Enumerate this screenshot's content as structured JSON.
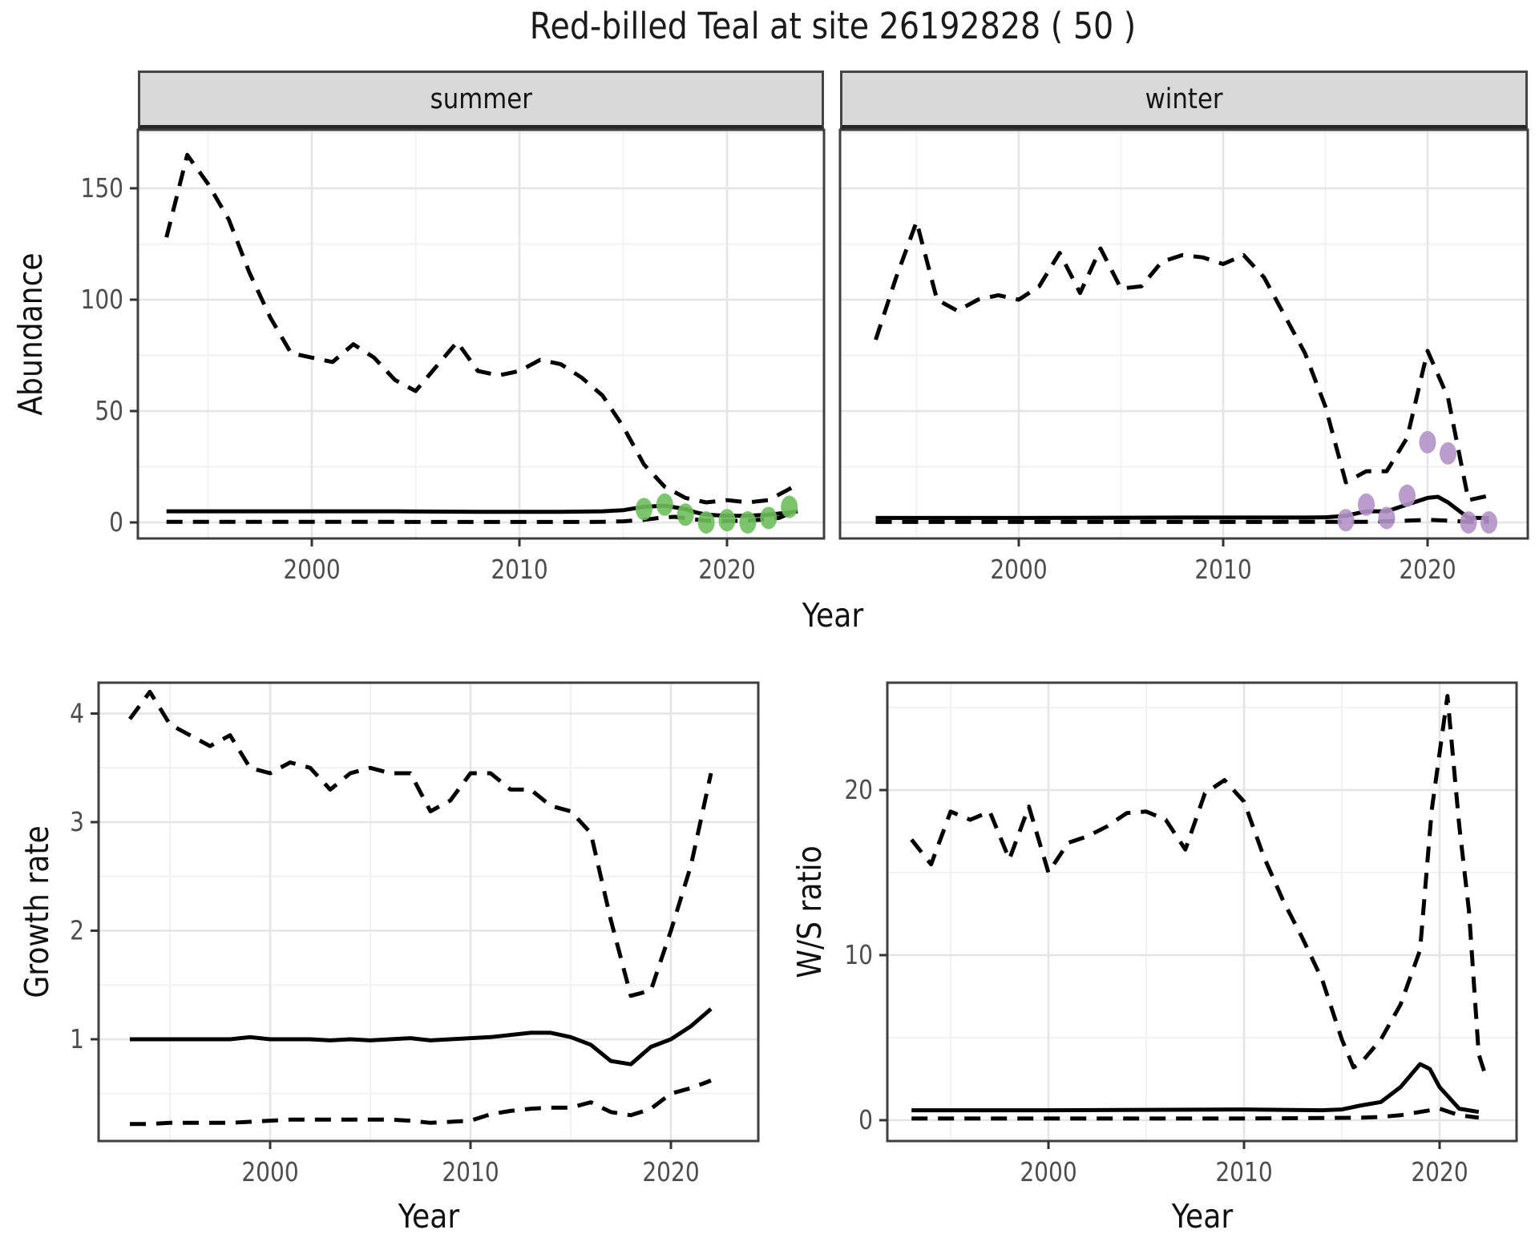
{
  "title": "Red-billed Teal at site 26192828 ( 50 )",
  "colors": {
    "summer_points": "#6fbf5c",
    "winter_points": "#b392c6",
    "line": "#000000",
    "grid_major": "#e5e5e5",
    "grid_minor": "#f2f2f2",
    "panel_border": "#3f3f3f",
    "tick_text": "#4d4d4d",
    "strip_bg": "#d9d9d9"
  },
  "chart_data": [
    {
      "id": "abundance-summer",
      "type": "line",
      "facet": "summer",
      "xlabel": "Year",
      "ylabel": "Abundance",
      "xlim": [
        1991.6,
        2024.7
      ],
      "ylim": [
        -7,
        176
      ],
      "xticks": [
        2000,
        2010,
        2020
      ],
      "yticks": [
        0,
        50,
        100,
        150
      ],
      "series": [
        {
          "name": "upper-95ci",
          "style": "dashed",
          "x": [
            1993,
            1994,
            1995,
            1996,
            1997,
            1998,
            1999,
            2000,
            2001,
            2002,
            2003,
            2004,
            2005,
            2006,
            2007,
            2008,
            2009,
            2010,
            2011,
            2012,
            2013,
            2014,
            2015,
            2016,
            2017,
            2018,
            2019,
            2020,
            2021,
            2022,
            2023,
            2023.4
          ],
          "y": [
            128,
            165,
            152,
            136,
            112,
            92,
            76,
            74,
            72,
            80,
            74,
            64,
            59,
            70,
            81,
            68,
            66,
            68,
            73,
            71,
            65,
            57,
            43,
            26,
            16,
            11,
            9,
            10,
            9,
            10,
            15,
            17
          ]
        },
        {
          "name": "median",
          "style": "solid",
          "x": [
            1993,
            1996,
            2000,
            2004,
            2008,
            2012,
            2014,
            2015,
            2016,
            2017,
            2018,
            2018.5,
            2019,
            2020,
            2021,
            2022,
            2023,
            2023.4
          ],
          "y": [
            5,
            5,
            5,
            5,
            4.8,
            4.8,
            5,
            5.5,
            7,
            7.5,
            6,
            4.5,
            3.5,
            3,
            3,
            3.5,
            4.5,
            5
          ]
        },
        {
          "name": "lower-95ci",
          "style": "dashed",
          "x": [
            1993,
            2000,
            2008,
            2013,
            2014,
            2015,
            2016,
            2017,
            2017.5,
            2018,
            2019,
            2020,
            2021,
            2022,
            2022.5,
            2023,
            2023.4
          ],
          "y": [
            0.3,
            0.3,
            0.2,
            0.2,
            0.3,
            0.5,
            1.2,
            2.3,
            2.5,
            1.8,
            0.8,
            0.6,
            0.8,
            1.5,
            2,
            4,
            6
          ]
        },
        {
          "name": "observed-counts",
          "style": "points",
          "color": "#6fbf5c",
          "x": [
            2016,
            2017,
            2018,
            2019,
            2020,
            2021,
            2022,
            2023
          ],
          "y": [
            6,
            8,
            3.5,
            0,
            1,
            0,
            2,
            7
          ]
        }
      ]
    },
    {
      "id": "abundance-winter",
      "type": "line",
      "facet": "winter",
      "xlabel": "Year",
      "ylabel": "Abundance",
      "xlim": [
        1991.3,
        2024.9
      ],
      "ylim": [
        -7,
        176
      ],
      "xticks": [
        2000,
        2010,
        2020
      ],
      "yticks": [
        0,
        50,
        100,
        150
      ],
      "series": [
        {
          "name": "upper-95ci",
          "style": "dashed",
          "x": [
            1993,
            1994,
            1995,
            1996,
            1997,
            1998,
            1999,
            2000,
            2001,
            2002,
            2003,
            2004,
            2005,
            2006,
            2007,
            2008,
            2009,
            2010,
            2011,
            2012,
            2013,
            2014,
            2015,
            2016,
            2017,
            2018,
            2019,
            2020,
            2021,
            2022,
            2023
          ],
          "y": [
            82,
            110,
            135,
            100,
            95,
            100,
            102,
            100,
            106,
            121,
            103,
            123,
            105,
            106,
            117,
            120,
            119,
            116,
            120,
            110,
            93,
            76,
            52,
            18,
            23,
            23,
            38,
            77,
            56,
            10,
            12
          ]
        },
        {
          "name": "median",
          "style": "solid",
          "x": [
            1993,
            2000,
            2008,
            2014,
            2015,
            2016,
            2017,
            2018,
            2019,
            2020,
            2020.5,
            2021,
            2022,
            2023
          ],
          "y": [
            2,
            2,
            2.2,
            2.2,
            2.3,
            3,
            5,
            5,
            8,
            11,
            11.5,
            9,
            2,
            2
          ]
        },
        {
          "name": "lower-95ci",
          "style": "dashed",
          "x": [
            1993,
            2000,
            2010,
            2017,
            2018,
            2019,
            2020,
            2021,
            2022,
            2023
          ],
          "y": [
            0.2,
            0.2,
            0.2,
            0.3,
            0.5,
            0.8,
            1.2,
            0.8,
            0.3,
            0.3
          ]
        },
        {
          "name": "observed-counts",
          "style": "points",
          "color": "#b392c6",
          "x": [
            2016,
            2017,
            2018,
            2019,
            2020,
            2021,
            2022,
            2023
          ],
          "y": [
            1,
            8,
            2,
            12,
            36,
            31,
            0,
            0
          ]
        }
      ]
    },
    {
      "id": "growth-rate",
      "type": "line",
      "facet": "",
      "xlabel": "Year",
      "ylabel": "Growth rate",
      "xlim": [
        1991.4,
        2024.4
      ],
      "ylim": [
        0.06,
        4.28
      ],
      "xticks": [
        2000,
        2010,
        2020
      ],
      "yticks": [
        1,
        2,
        3,
        4
      ],
      "series": [
        {
          "name": "upper-95ci",
          "style": "dashed",
          "x": [
            1993,
            1994,
            1995,
            1996,
            1997,
            1998,
            1999,
            2000,
            2001,
            2002,
            2003,
            2004,
            2005,
            2006,
            2007,
            2008,
            2009,
            2010,
            2011,
            2012,
            2013,
            2014,
            2015,
            2016,
            2017,
            2018,
            2019,
            2020,
            2021,
            2022
          ],
          "y": [
            3.95,
            4.2,
            3.9,
            3.8,
            3.7,
            3.8,
            3.5,
            3.45,
            3.55,
            3.5,
            3.3,
            3.45,
            3.5,
            3.45,
            3.45,
            3.1,
            3.2,
            3.45,
            3.45,
            3.3,
            3.3,
            3.15,
            3.1,
            2.9,
            2.1,
            1.4,
            1.45,
            2.0,
            2.6,
            3.45
          ]
        },
        {
          "name": "median",
          "style": "solid",
          "x": [
            1993,
            1994,
            1995,
            1996,
            1997,
            1998,
            1999,
            2000,
            2001,
            2002,
            2003,
            2004,
            2005,
            2006,
            2007,
            2008,
            2009,
            2010,
            2011,
            2012,
            2013,
            2014,
            2015,
            2016,
            2017,
            2018,
            2019,
            2020,
            2021,
            2022
          ],
          "y": [
            1,
            1,
            1,
            1,
            1,
            1,
            1.02,
            1,
            1,
            1,
            0.99,
            1,
            0.99,
            1,
            1.01,
            0.99,
            1,
            1.01,
            1.02,
            1.04,
            1.06,
            1.06,
            1.02,
            0.95,
            0.8,
            0.77,
            0.93,
            1.0,
            1.12,
            1.28
          ]
        },
        {
          "name": "lower-95ci",
          "style": "dashed",
          "x": [
            1993,
            1994,
            1995,
            1996,
            1997,
            1998,
            1999,
            2000,
            2001,
            2002,
            2003,
            2004,
            2005,
            2006,
            2007,
            2008,
            2009,
            2010,
            2011,
            2012,
            2013,
            2014,
            2015,
            2016,
            2017,
            2018,
            2019,
            2020,
            2021,
            2022
          ],
          "y": [
            0.22,
            0.22,
            0.23,
            0.23,
            0.23,
            0.23,
            0.24,
            0.25,
            0.26,
            0.26,
            0.26,
            0.26,
            0.26,
            0.26,
            0.25,
            0.23,
            0.24,
            0.25,
            0.31,
            0.34,
            0.36,
            0.37,
            0.37,
            0.42,
            0.33,
            0.3,
            0.36,
            0.5,
            0.55,
            0.62
          ]
        }
      ]
    },
    {
      "id": "ws-ratio",
      "type": "line",
      "facet": "",
      "xlabel": "Year",
      "ylabel": "W/S ratio",
      "xlim": [
        1991.8,
        2024.0
      ],
      "ylim": [
        -1.3,
        26.5
      ],
      "xticks": [
        2000,
        2010,
        2020
      ],
      "yticks": [
        0,
        10,
        20
      ],
      "series": [
        {
          "name": "upper-95ci",
          "style": "dashed",
          "x": [
            1993,
            1994,
            1995,
            1996,
            1997,
            1998,
            1999,
            2000,
            2001,
            2002,
            2003,
            2004,
            2005,
            2006,
            2007,
            2008,
            2009,
            2010,
            2011,
            2012,
            2013,
            2014,
            2015,
            2015.6,
            2016,
            2017,
            2018,
            2019,
            2019.6,
            2020.4,
            2021,
            2021.5,
            2022,
            2022.4
          ],
          "y": [
            17,
            15.5,
            18.7,
            18.2,
            18.7,
            15.8,
            19,
            15,
            16.8,
            17.2,
            17.8,
            18.6,
            18.7,
            18.2,
            16.4,
            19.8,
            20.6,
            19.3,
            16,
            13.3,
            11,
            8.5,
            4.9,
            3.2,
            3.5,
            4.9,
            7,
            10.3,
            18.8,
            25.7,
            17.9,
            12.7,
            4,
            2.5
          ]
        },
        {
          "name": "median",
          "style": "solid",
          "x": [
            1993,
            2000,
            2010,
            2014,
            2015,
            2016,
            2017,
            2018,
            2019,
            2019.5,
            2020,
            2021,
            2022
          ],
          "y": [
            0.6,
            0.6,
            0.65,
            0.6,
            0.65,
            0.9,
            1.1,
            2.0,
            3.4,
            3.1,
            2.0,
            0.7,
            0.5
          ]
        },
        {
          "name": "lower-95ci",
          "style": "dashed",
          "x": [
            1993,
            2000,
            2010,
            2016,
            2017,
            2018,
            2019,
            2020,
            2021,
            2022
          ],
          "y": [
            0.1,
            0.1,
            0.1,
            0.15,
            0.2,
            0.3,
            0.5,
            0.7,
            0.3,
            0.15
          ]
        }
      ]
    }
  ]
}
